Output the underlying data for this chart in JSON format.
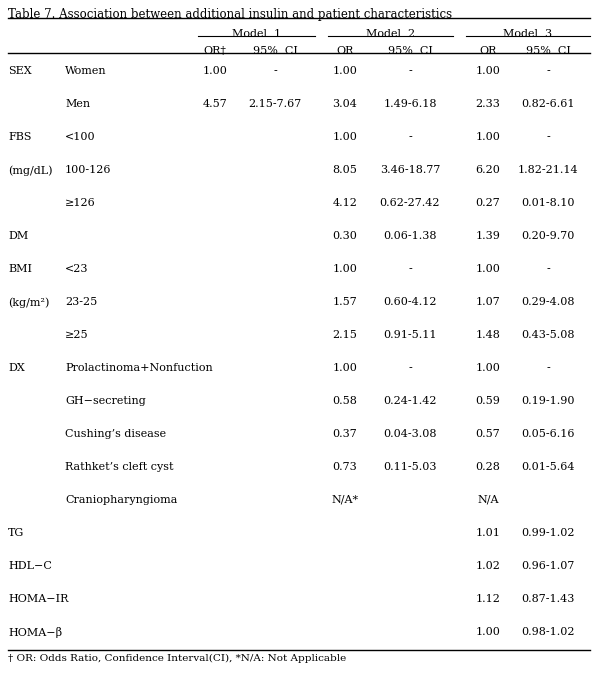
{
  "title": "Table 7. Association between additional insulin and patient characteristics",
  "footnote": "† OR: Odds Ratio, Confidence Interval(CI), *N/A: Not Applicable",
  "rows": [
    [
      "SEX",
      "Women",
      "1.00",
      "-",
      "1.00",
      "-",
      "1.00",
      "-"
    ],
    [
      "",
      "Men",
      "4.57",
      "2.15-7.67",
      "3.04",
      "1.49-6.18",
      "2.33",
      "0.82-6.61"
    ],
    [
      "FBS",
      "<100",
      "",
      "",
      "1.00",
      "-",
      "1.00",
      "-"
    ],
    [
      "(mg/dL)",
      "100-126",
      "",
      "",
      "8.05",
      "3.46-18.77",
      "6.20",
      "1.82-21.14"
    ],
    [
      "",
      "≥126",
      "",
      "",
      "4.12",
      "0.62-27.42",
      "0.27",
      "0.01-8.10"
    ],
    [
      "DM",
      "",
      "",
      "",
      "0.30",
      "0.06-1.38",
      "1.39",
      "0.20-9.70"
    ],
    [
      "BMI",
      "<23",
      "",
      "",
      "1.00",
      "-",
      "1.00",
      "-"
    ],
    [
      "(kg/m²)",
      "23-25",
      "",
      "",
      "1.57",
      "0.60-4.12",
      "1.07",
      "0.29-4.08"
    ],
    [
      "",
      "≥25",
      "",
      "",
      "2.15",
      "0.91-5.11",
      "1.48",
      "0.43-5.08"
    ],
    [
      "DX",
      "Prolactinoma+Nonfuction",
      "",
      "",
      "1.00",
      "-",
      "1.00",
      "-"
    ],
    [
      "",
      "GH−secreting",
      "",
      "",
      "0.58",
      "0.24-1.42",
      "0.59",
      "0.19-1.90"
    ],
    [
      "",
      "Cushing’s disease",
      "",
      "",
      "0.37",
      "0.04-3.08",
      "0.57",
      "0.05-6.16"
    ],
    [
      "",
      "Rathket’s cleft cyst",
      "",
      "",
      "0.73",
      "0.11-5.03",
      "0.28",
      "0.01-5.64"
    ],
    [
      "",
      "Craniopharyngioma",
      "",
      "",
      "N/A*",
      "",
      "N/A",
      ""
    ],
    [
      "TG",
      "",
      "",
      "",
      "",
      "",
      "1.01",
      "0.99-1.02"
    ],
    [
      "HDL−C",
      "",
      "",
      "",
      "",
      "",
      "1.02",
      "0.96-1.07"
    ],
    [
      "HOMA−IR",
      "",
      "",
      "",
      "",
      "",
      "1.12",
      "0.87-1.43"
    ],
    [
      "HOMA−β",
      "",
      "",
      "",
      "",
      "",
      "1.00",
      "0.98-1.02"
    ]
  ],
  "fontsize": 8.0,
  "title_fontsize": 8.5
}
